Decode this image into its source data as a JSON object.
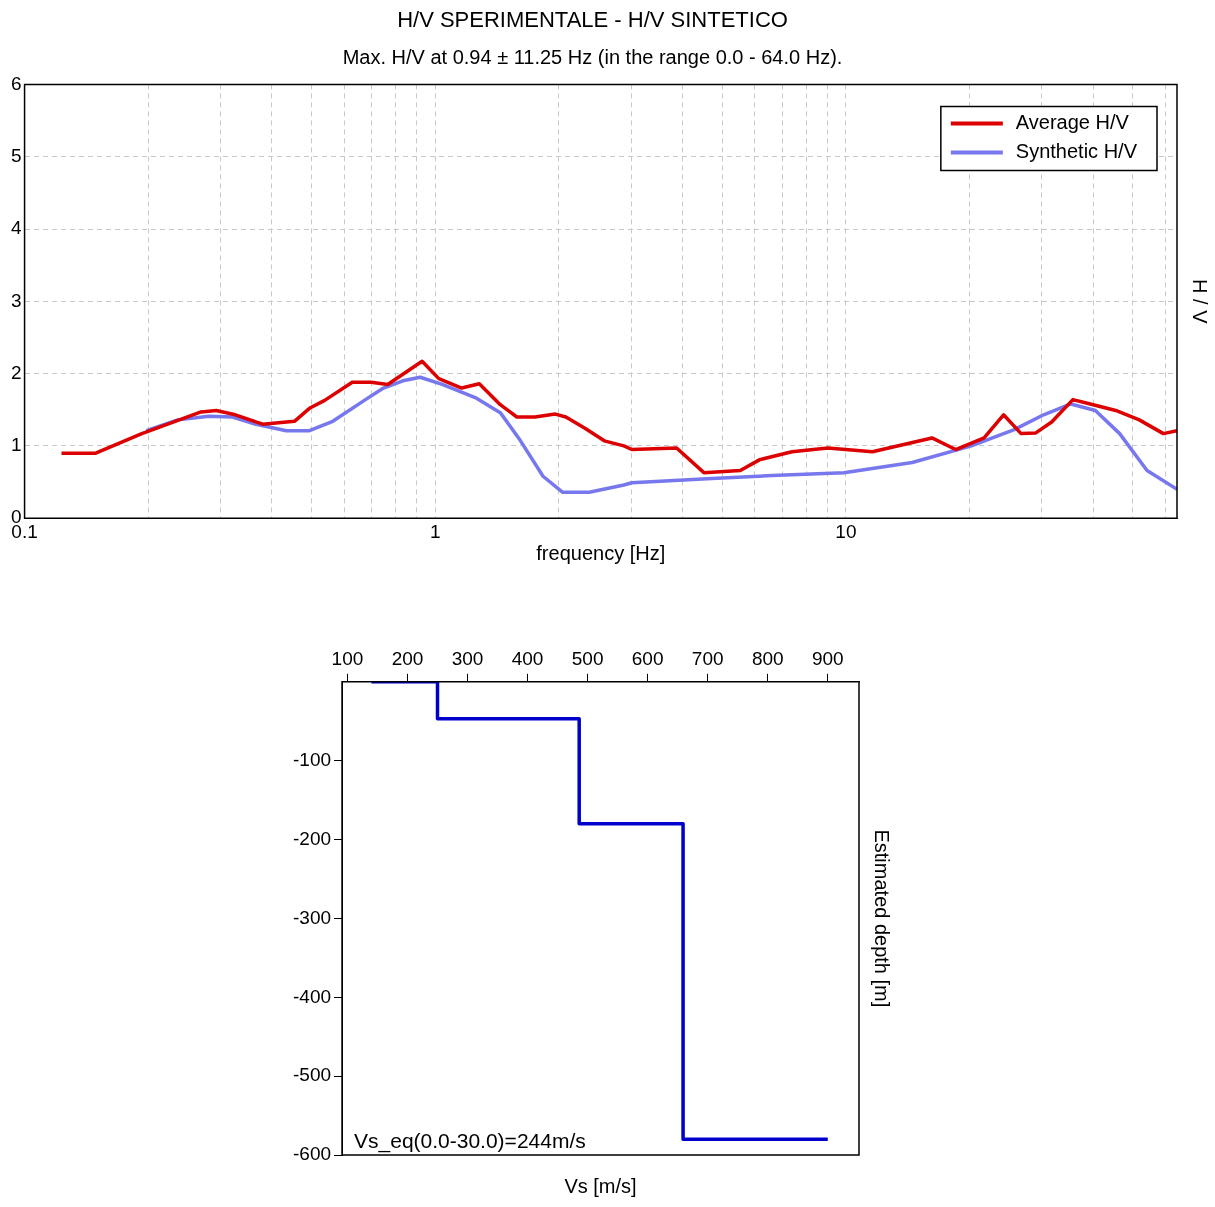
{
  "chart_data": [
    {
      "type": "line",
      "title": "H/V SPERIMENTALE - H/V SINTETICO",
      "subtitle": "Max. H/V at 0.94 ± 11.25 Hz (in the range 0.0 - 64.0 Hz).",
      "xlabel": "frequency [Hz]",
      "ylabel": "H / V",
      "log": "x",
      "grid": true,
      "legend": "top right",
      "xlim": [
        0.1,
        64
      ],
      "xticks": [
        {
          "value": 0.1,
          "label": "0.1"
        },
        {
          "value": 0.2,
          "label": null
        },
        {
          "value": 0.3,
          "label": null
        },
        {
          "value": 0.4,
          "label": null
        },
        {
          "value": 0.5,
          "label": null
        },
        {
          "value": 0.6,
          "label": null
        },
        {
          "value": 0.7,
          "label": null
        },
        {
          "value": 0.8,
          "label": null
        },
        {
          "value": 0.9,
          "label": null
        },
        {
          "value": 1,
          "label": "1"
        },
        {
          "value": 2,
          "label": null
        },
        {
          "value": 3,
          "label": null
        },
        {
          "value": 4,
          "label": null
        },
        {
          "value": 5,
          "label": null
        },
        {
          "value": 6,
          "label": null
        },
        {
          "value": 7,
          "label": null
        },
        {
          "value": 8,
          "label": null
        },
        {
          "value": 9,
          "label": null
        },
        {
          "value": 10,
          "label": "10"
        },
        {
          "value": 20,
          "label": null
        },
        {
          "value": 30,
          "label": null
        },
        {
          "value": 40,
          "label": null
        },
        {
          "value": 50,
          "label": null
        },
        {
          "value": 60,
          "label": null
        }
      ],
      "ylim": [
        0,
        6
      ],
      "yticks": [
        0,
        1,
        2,
        3,
        4,
        5,
        6
      ],
      "series": [
        {
          "name": "Average H/V",
          "color": "#dd0000",
          "x": [
            0.123,
            0.149,
            0.193,
            0.269,
            0.293,
            0.326,
            0.38,
            0.454,
            0.494,
            0.538,
            0.628,
            0.698,
            0.766,
            0.834,
            0.929,
            1.02,
            1.16,
            1.28,
            1.44,
            1.58,
            1.75,
            1.96,
            2.08,
            2.32,
            2.58,
            2.88,
            3.01,
            3.87,
            4.51,
            5.53,
            6.17,
            7.39,
            9.03,
            11.6,
            16.2,
            18.5,
            21.7,
            24.2,
            26.7,
            29,
            31.7,
            35.7,
            38.7,
            45.4,
            51.8,
            59.3,
            64
          ],
          "values": [
            0.9,
            0.9,
            1.17,
            1.47,
            1.49,
            1.43,
            1.3,
            1.34,
            1.52,
            1.63,
            1.88,
            1.88,
            1.85,
            1.99,
            2.17,
            1.93,
            1.8,
            1.86,
            1.57,
            1.4,
            1.4,
            1.44,
            1.4,
            1.24,
            1.07,
            1.0,
            0.95,
            0.97,
            0.63,
            0.66,
            0.81,
            0.92,
            0.97,
            0.92,
            1.11,
            0.95,
            1.11,
            1.43,
            1.17,
            1.18,
            1.33,
            1.64,
            1.59,
            1.49,
            1.36,
            1.17,
            1.21
          ]
        },
        {
          "name": "Synthetic H/V",
          "color": "#7777ee",
          "x": [
            0.198,
            0.236,
            0.281,
            0.321,
            0.366,
            0.434,
            0.494,
            0.563,
            0.672,
            0.748,
            0.834,
            0.919,
            1.04,
            1.26,
            1.44,
            1.6,
            1.83,
            2.04,
            2.37,
            2.88,
            3.01,
            4.72,
            6.61,
            9.89,
            14.5,
            20.2,
            25.8,
            30.3,
            35.3,
            40.5,
            46.4,
            54.1,
            64
          ],
          "values": [
            1.21,
            1.36,
            1.41,
            1.4,
            1.3,
            1.21,
            1.21,
            1.34,
            1.63,
            1.8,
            1.9,
            1.95,
            1.85,
            1.66,
            1.46,
            1.1,
            0.58,
            0.36,
            0.36,
            0.46,
            0.49,
            0.55,
            0.59,
            0.63,
            0.77,
            1.0,
            1.23,
            1.43,
            1.58,
            1.49,
            1.17,
            0.66,
            0.4
          ]
        }
      ]
    },
    {
      "type": "line",
      "xlabel": "Vs [m/s]",
      "ylabel": "Estimated depth [m]",
      "annotations": [
        "Vs_eq(0.0-30.0)=244m/s"
      ],
      "xlim": [
        91,
        952
      ],
      "xticks": [
        100,
        200,
        300,
        400,
        500,
        600,
        700,
        800,
        900
      ],
      "ylim": [
        -600,
        0
      ],
      "yticks": [
        -100,
        -200,
        -300,
        -400,
        -500,
        -600
      ],
      "series": [
        {
          "color": "#0000cc",
          "x": [
            140,
            250,
            250,
            486,
            486,
            659,
            659,
            900
          ],
          "values": [
            0,
            0,
            -47,
            -47,
            -180,
            -180,
            -580,
            -580
          ]
        }
      ]
    }
  ]
}
